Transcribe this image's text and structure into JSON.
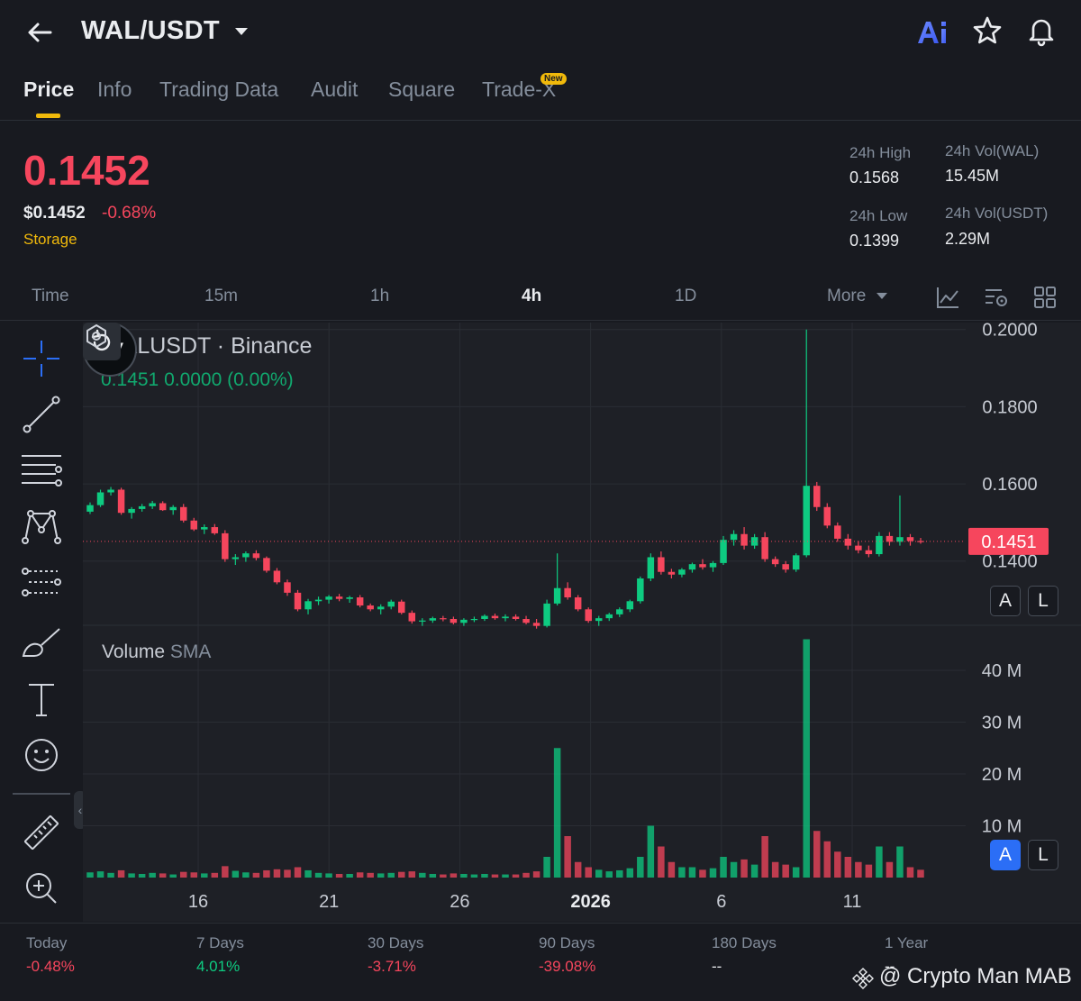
{
  "header": {
    "pair": "WAL/USDT"
  },
  "tabs": [
    {
      "label": "Price",
      "active": true
    },
    {
      "label": "Info"
    },
    {
      "label": "Trading Data"
    },
    {
      "label": "Audit"
    },
    {
      "label": "Square"
    },
    {
      "label": "Trade-X",
      "badge": "New"
    }
  ],
  "price": {
    "last": "0.1452",
    "usd": "$0.1452",
    "change": "-0.68%",
    "tag": "Storage"
  },
  "stats": {
    "high_label": "24h High",
    "high_value": "0.1568",
    "low_label": "24h Low",
    "low_value": "0.1399",
    "vol_base_label": "24h Vol(WAL)",
    "vol_base_value": "15.45M",
    "vol_quote_label": "24h Vol(USDT)",
    "vol_quote_value": "2.29M"
  },
  "timeframes": {
    "time_label": "Time",
    "options": [
      "15m",
      "1h",
      "4h",
      "1D"
    ],
    "active": "4h",
    "more_label": "More"
  },
  "chart": {
    "symbol": "WALUSDT · Binance",
    "ohlc": "0.1451  0.0000 (0.00%)",
    "last_price_tag": "0.1451",
    "volume_label": "Volume",
    "volume_sub": "SMA",
    "auto_label": "A",
    "log_label": "L"
  },
  "chart_data": {
    "type": "candlestick",
    "price_axis": {
      "ticks": [
        "0.2000",
        "0.1800",
        "0.1600",
        "0.1400"
      ],
      "range": [
        0.1236,
        0.2018
      ]
    },
    "volume_axis": {
      "ticks": [
        "40 M",
        "30 M",
        "20 M",
        "10 M"
      ],
      "range": [
        0,
        48
      ]
    },
    "x_ticks": [
      "16",
      "21",
      "26",
      "2026",
      "6",
      "11"
    ],
    "colors": {
      "up": "#0ecb81",
      "down": "#f6465d"
    },
    "candles": [
      [
        0.1528,
        0.1552,
        0.1522,
        0.1545,
        1.0
      ],
      [
        0.1545,
        0.1585,
        0.154,
        0.1578,
        1.2
      ],
      [
        0.1578,
        0.1592,
        0.157,
        0.1585,
        0.9
      ],
      [
        0.1585,
        0.159,
        0.152,
        0.1525,
        1.4
      ],
      [
        0.1525,
        0.154,
        0.151,
        0.1535,
        0.8
      ],
      [
        0.1535,
        0.1548,
        0.1528,
        0.1542,
        0.7
      ],
      [
        0.1542,
        0.1556,
        0.1535,
        0.155,
        0.9
      ],
      [
        0.155,
        0.1555,
        0.153,
        0.1532,
        0.8
      ],
      [
        0.1532,
        0.1545,
        0.152,
        0.154,
        0.6
      ],
      [
        0.154,
        0.1548,
        0.15,
        0.1505,
        1.1
      ],
      [
        0.1505,
        0.1512,
        0.1478,
        0.1482,
        1.0
      ],
      [
        0.1482,
        0.1495,
        0.147,
        0.1488,
        0.8
      ],
      [
        0.1488,
        0.1496,
        0.1468,
        0.1472,
        0.9
      ],
      [
        0.1472,
        0.148,
        0.1398,
        0.1405,
        2.2
      ],
      [
        0.1405,
        0.1418,
        0.139,
        0.141,
        1.3
      ],
      [
        0.141,
        0.1425,
        0.1398,
        0.142,
        1.0
      ],
      [
        0.142,
        0.1428,
        0.1402,
        0.1408,
        0.9
      ],
      [
        0.1408,
        0.1412,
        0.137,
        0.1375,
        1.4
      ],
      [
        0.1375,
        0.1382,
        0.134,
        0.1345,
        1.6
      ],
      [
        0.1345,
        0.1352,
        0.131,
        0.1318,
        1.5
      ],
      [
        0.1318,
        0.1325,
        0.127,
        0.1275,
        2.0
      ],
      [
        0.1275,
        0.1302,
        0.1262,
        0.1296,
        1.4
      ],
      [
        0.1296,
        0.1308,
        0.1286,
        0.13,
        0.9
      ],
      [
        0.13,
        0.1312,
        0.129,
        0.1308,
        0.8
      ],
      [
        0.1308,
        0.1315,
        0.1296,
        0.1302,
        0.7
      ],
      [
        0.1302,
        0.131,
        0.1292,
        0.1306,
        0.7
      ],
      [
        0.1306,
        0.1312,
        0.128,
        0.1285,
        1.0
      ],
      [
        0.1285,
        0.129,
        0.127,
        0.1275,
        0.9
      ],
      [
        0.1275,
        0.1288,
        0.1262,
        0.1282,
        0.8
      ],
      [
        0.1282,
        0.13,
        0.1275,
        0.1295,
        0.9
      ],
      [
        0.1295,
        0.13,
        0.1262,
        0.1266,
        1.1
      ],
      [
        0.1266,
        0.1272,
        0.1238,
        0.1244,
        1.2
      ],
      [
        0.1244,
        0.1252,
        0.1232,
        0.1246,
        0.9
      ],
      [
        0.1246,
        0.1256,
        0.124,
        0.1252,
        0.7
      ],
      [
        0.1252,
        0.1258,
        0.1244,
        0.125,
        0.6
      ],
      [
        0.125,
        0.1256,
        0.1236,
        0.124,
        0.8
      ],
      [
        0.124,
        0.1252,
        0.1232,
        0.1248,
        0.7
      ],
      [
        0.1248,
        0.1256,
        0.1242,
        0.125,
        0.6
      ],
      [
        0.125,
        0.1262,
        0.1245,
        0.1258,
        0.7
      ],
      [
        0.1258,
        0.1264,
        0.1248,
        0.1252,
        0.6
      ],
      [
        0.1252,
        0.1262,
        0.1244,
        0.1256,
        0.6
      ],
      [
        0.1256,
        0.1262,
        0.1246,
        0.125,
        0.6
      ],
      [
        0.125,
        0.1258,
        0.1236,
        0.124,
        0.9
      ],
      [
        0.124,
        0.125,
        0.1225,
        0.1232,
        1.2
      ],
      [
        0.1232,
        0.13,
        0.1228,
        0.129,
        4.0
      ],
      [
        0.129,
        0.142,
        0.1285,
        0.133,
        25.0
      ],
      [
        0.133,
        0.1345,
        0.13,
        0.1306,
        8.0
      ],
      [
        0.1306,
        0.1312,
        0.127,
        0.1275,
        3.0
      ],
      [
        0.1275,
        0.128,
        0.124,
        0.1245,
        2.0
      ],
      [
        0.1245,
        0.1258,
        0.1232,
        0.1252,
        1.5
      ],
      [
        0.1252,
        0.1266,
        0.1245,
        0.1262,
        1.2
      ],
      [
        0.1262,
        0.128,
        0.1255,
        0.1275,
        1.4
      ],
      [
        0.1275,
        0.13,
        0.1268,
        0.1296,
        1.8
      ],
      [
        0.1296,
        0.136,
        0.129,
        0.1355,
        4.0
      ],
      [
        0.1355,
        0.142,
        0.1348,
        0.141,
        10.0
      ],
      [
        0.141,
        0.1425,
        0.1365,
        0.1372,
        6.0
      ],
      [
        0.1372,
        0.138,
        0.1355,
        0.1365,
        3.0
      ],
      [
        0.1365,
        0.1382,
        0.1358,
        0.1378,
        2.0
      ],
      [
        0.1378,
        0.1396,
        0.137,
        0.1392,
        2.0
      ],
      [
        0.1392,
        0.1405,
        0.1378,
        0.1384,
        1.5
      ],
      [
        0.1384,
        0.14,
        0.1372,
        0.1395,
        1.8
      ],
      [
        0.1395,
        0.1465,
        0.139,
        0.1455,
        4.0
      ],
      [
        0.1455,
        0.148,
        0.144,
        0.147,
        3.0
      ],
      [
        0.147,
        0.1488,
        0.143,
        0.144,
        3.5
      ],
      [
        0.144,
        0.147,
        0.1432,
        0.1462,
        2.5
      ],
      [
        0.1462,
        0.1475,
        0.1398,
        0.1405,
        8.0
      ],
      [
        0.1405,
        0.1412,
        0.1385,
        0.1392,
        3.0
      ],
      [
        0.1392,
        0.14,
        0.137,
        0.1378,
        2.5
      ],
      [
        0.1378,
        0.142,
        0.1372,
        0.1415,
        2.0
      ],
      [
        0.1415,
        0.2,
        0.141,
        0.1595,
        46.0
      ],
      [
        0.1595,
        0.1605,
        0.153,
        0.154,
        9.0
      ],
      [
        0.154,
        0.155,
        0.1485,
        0.1492,
        7.0
      ],
      [
        0.1492,
        0.15,
        0.145,
        0.1458,
        5.0
      ],
      [
        0.1458,
        0.147,
        0.143,
        0.144,
        4.0
      ],
      [
        0.144,
        0.1452,
        0.142,
        0.1428,
        3.0
      ],
      [
        0.1428,
        0.144,
        0.141,
        0.1418,
        2.5
      ],
      [
        0.1418,
        0.1475,
        0.1412,
        0.1465,
        6.0
      ],
      [
        0.1465,
        0.1475,
        0.144,
        0.145,
        3.0
      ],
      [
        0.145,
        0.157,
        0.144,
        0.1462,
        6.0
      ],
      [
        0.1462,
        0.147,
        0.144,
        0.1452,
        2.0
      ],
      [
        0.1452,
        0.146,
        0.1445,
        0.1451,
        1.5
      ]
    ]
  },
  "performance": [
    {
      "label": "Today",
      "value": "-0.48%",
      "color": "#f6465d"
    },
    {
      "label": "7 Days",
      "value": "4.01%",
      "color": "#0ecb81"
    },
    {
      "label": "30 Days",
      "value": "-3.71%",
      "color": "#f6465d"
    },
    {
      "label": "90 Days",
      "value": "-39.08%",
      "color": "#f6465d"
    },
    {
      "label": "180 Days",
      "value": "--",
      "color": "#eaecef"
    },
    {
      "label": "1 Year",
      "value": "--",
      "color": "#eaecef"
    }
  ],
  "watermark": {
    "text": "@ Crypto Man MAB"
  }
}
